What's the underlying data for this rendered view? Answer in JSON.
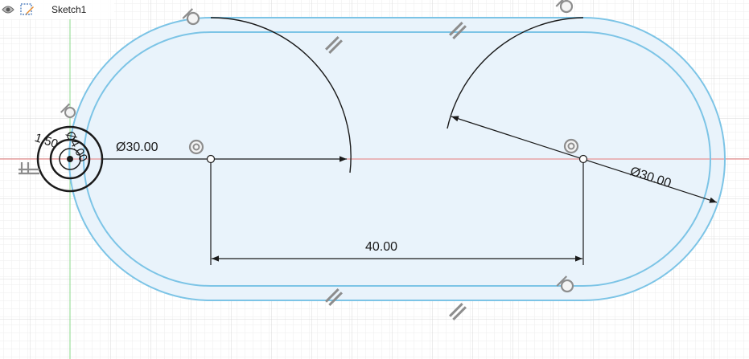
{
  "browser": {
    "sketch_name": "Sketch1"
  },
  "dimensions": {
    "left_diameter": "Ø30.00",
    "right_diameter": "Ø30.00",
    "center_distance": "40.00",
    "small_circle_a": "1.50",
    "small_circle_b": "Ø4.00"
  },
  "colors": {
    "profile_fill": "#e8f2fa",
    "slot_line": "#7cc4e6",
    "grid_minor": "#ececec",
    "grid_major": "#d6d6d6",
    "x_axis": "#e66a6a",
    "y_axis": "#7ad67a",
    "sketch_line": "#1a1a1a",
    "constraint_glyph": "#9a9a9a"
  },
  "icons": {
    "visibility": "eye-icon",
    "sketch": "sketch-icon",
    "constraints": [
      "tangent-icon",
      "parallel-icon",
      "concentric-icon",
      "horizontal-icon"
    ]
  }
}
